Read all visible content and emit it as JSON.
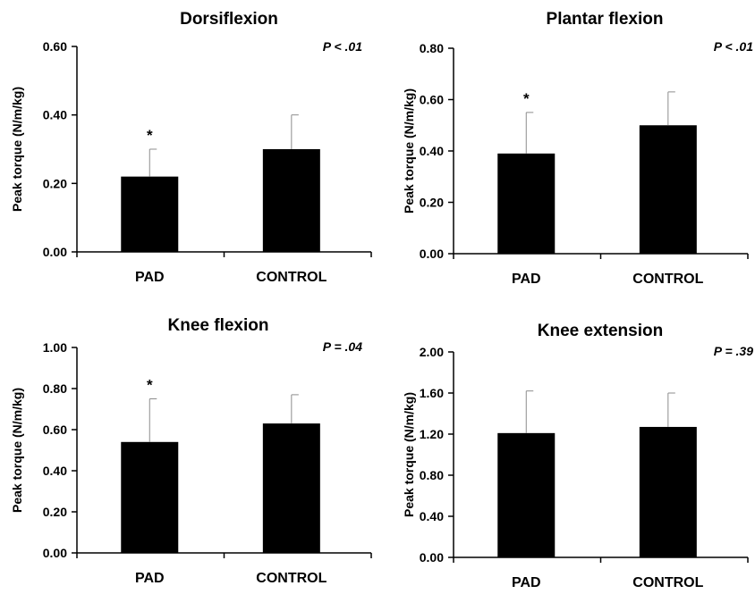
{
  "chart_data": [
    {
      "type": "bar",
      "title": "Dorsiflexion",
      "ylabel": "Peak torque (N/m/kg)",
      "xlabel": "",
      "categories": [
        "PAD",
        "CONTROL"
      ],
      "values": [
        0.22,
        0.3
      ],
      "error": [
        0.08,
        0.1
      ],
      "annotations": [
        "*",
        ""
      ],
      "pvalue": "P < .01",
      "ylim": [
        0,
        0.6
      ],
      "yticks": [
        0,
        0.2,
        0.4,
        0.6
      ],
      "ytick_labels": [
        "0.00",
        "0.20",
        "0.40",
        "0.60"
      ],
      "bar_color": "#000000",
      "grid": false
    },
    {
      "type": "bar",
      "title": "Plantar flexion",
      "ylabel": "Peak torque (N/m/kg)",
      "xlabel": "",
      "categories": [
        "PAD",
        "CONTROL"
      ],
      "values": [
        0.39,
        0.5
      ],
      "error": [
        0.16,
        0.13
      ],
      "annotations": [
        "*",
        ""
      ],
      "pvalue": "P < .01",
      "ylim": [
        0,
        0.8
      ],
      "yticks": [
        0,
        0.2,
        0.4,
        0.6,
        0.8
      ],
      "ytick_labels": [
        "0.00",
        "0.20",
        "0.40",
        "0.60",
        "0.80"
      ],
      "bar_color": "#000000",
      "grid": false
    },
    {
      "type": "bar",
      "title": "Knee flexion",
      "ylabel": "Peak torque (N/m/kg)",
      "xlabel": "",
      "categories": [
        "PAD",
        "CONTROL"
      ],
      "values": [
        0.54,
        0.63
      ],
      "error": [
        0.21,
        0.14
      ],
      "annotations": [
        "*",
        ""
      ],
      "pvalue": "P = .04",
      "ylim": [
        0,
        1.0
      ],
      "yticks": [
        0,
        0.2,
        0.4,
        0.6,
        0.8,
        1.0
      ],
      "ytick_labels": [
        "0.00",
        "0.20",
        "0.40",
        "0.60",
        "0.80",
        "1.00"
      ],
      "bar_color": "#000000",
      "grid": false
    },
    {
      "type": "bar",
      "title": "Knee extension",
      "ylabel": "Peak torque (N/m/kg)",
      "xlabel": "",
      "categories": [
        "PAD",
        "CONTROL"
      ],
      "values": [
        1.21,
        1.27
      ],
      "error": [
        0.41,
        0.33
      ],
      "annotations": [
        "",
        ""
      ],
      "pvalue": "P = .39",
      "ylim": [
        0,
        2.0
      ],
      "yticks": [
        0,
        0.4,
        0.8,
        1.2,
        1.6,
        2.0
      ],
      "ytick_labels": [
        "0.00",
        "0.40",
        "0.80",
        "1.20",
        "1.60",
        "2.00"
      ],
      "bar_color": "#000000",
      "grid": false
    }
  ]
}
